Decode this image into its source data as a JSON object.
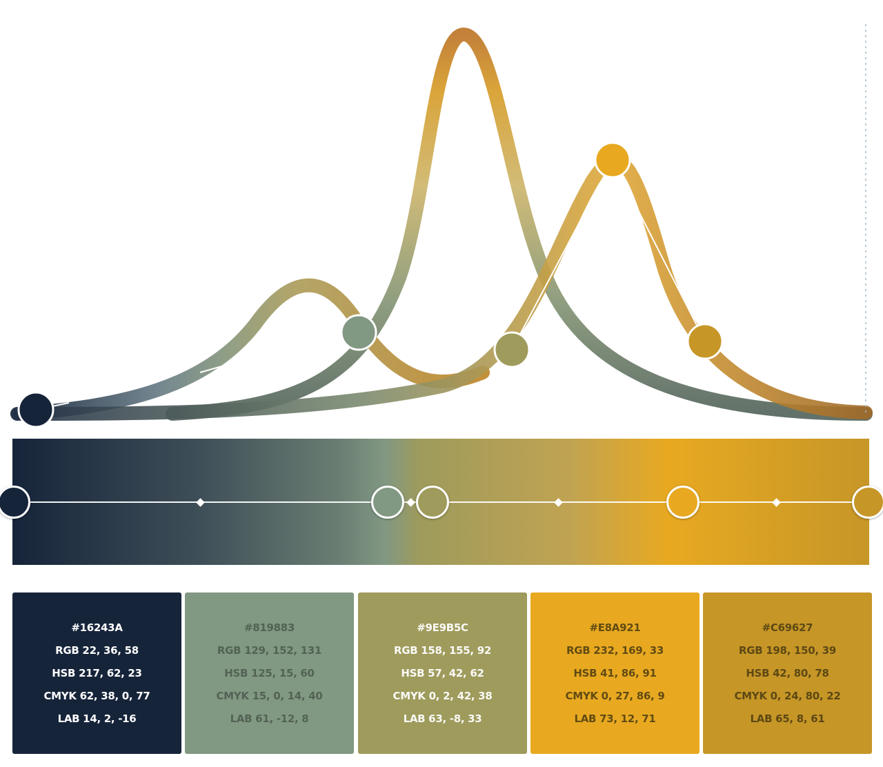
{
  "colors": [
    {
      "hex": "#16243A",
      "rgb": "RGB 22, 36, 58",
      "hsb": "HSB 217, 62, 23",
      "cmyk": "CMYK 62, 38, 0, 77",
      "lab": "LAB 14, 2, -16"
    },
    {
      "hex": "#819883",
      "rgb": "RGB 129, 152, 131",
      "hsb": "HSB 125, 15, 60",
      "cmyk": "CMYK 15, 0, 14, 40",
      "lab": "LAB 61, -12, 8"
    },
    {
      "hex": "#9E9B5C",
      "rgb": "RGB 158, 155, 92",
      "hsb": "HSB 57, 42, 62",
      "cmyk": "CMYK 0, 2, 42, 38",
      "lab": "LAB 63, -8, 33"
    },
    {
      "hex": "#E8A921",
      "rgb": "RGB 232, 169, 33",
      "hsb": "HSB 41, 86, 91",
      "cmyk": "CMYK 0, 27, 86, 9",
      "lab": "LAB 73, 12, 71"
    },
    {
      "hex": "#C69627",
      "rgb": "RGB 198, 150, 39",
      "hsb": "HSB 42, 80, 78",
      "cmyk": "CMYK 0, 24, 80, 22",
      "lab": "LAB 65, 8, 61"
    }
  ],
  "accent_colors": {
    "curve_start": "#16243A",
    "curve_mid": "#819883",
    "curve_peak": "#c08030",
    "curve_end": "#a87028"
  },
  "icons": {
    "stop": "circle-handle",
    "midpoint": "diamond-marker"
  }
}
